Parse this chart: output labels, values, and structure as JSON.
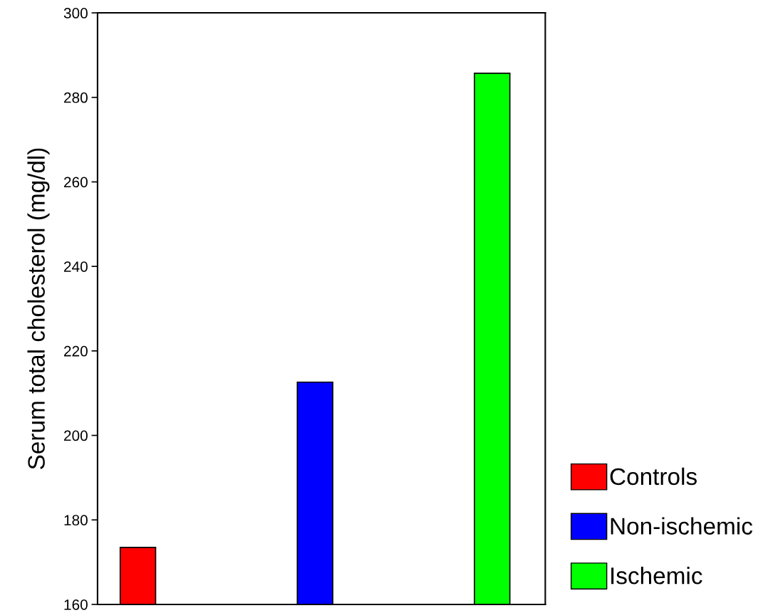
{
  "chart_data": {
    "type": "bar",
    "ylabel": "Serum total cholesterol (mg/dl)",
    "categories": [
      null,
      null,
      null
    ],
    "series": [
      {
        "name": "Controls",
        "color": "#ff0000",
        "values": [
          173.5,
          null,
          null
        ]
      },
      {
        "name": "Non-ischemic",
        "color": "#0000ff",
        "values": [
          null,
          212.6,
          null
        ]
      },
      {
        "name": "Ischemic",
        "color": "#00ff00",
        "values": [
          null,
          null,
          285.7
        ]
      }
    ],
    "ylim": [
      160,
      300
    ],
    "yticks": [
      160,
      180,
      200,
      220,
      240,
      260,
      280,
      300
    ],
    "grid": false,
    "legend": "right"
  }
}
